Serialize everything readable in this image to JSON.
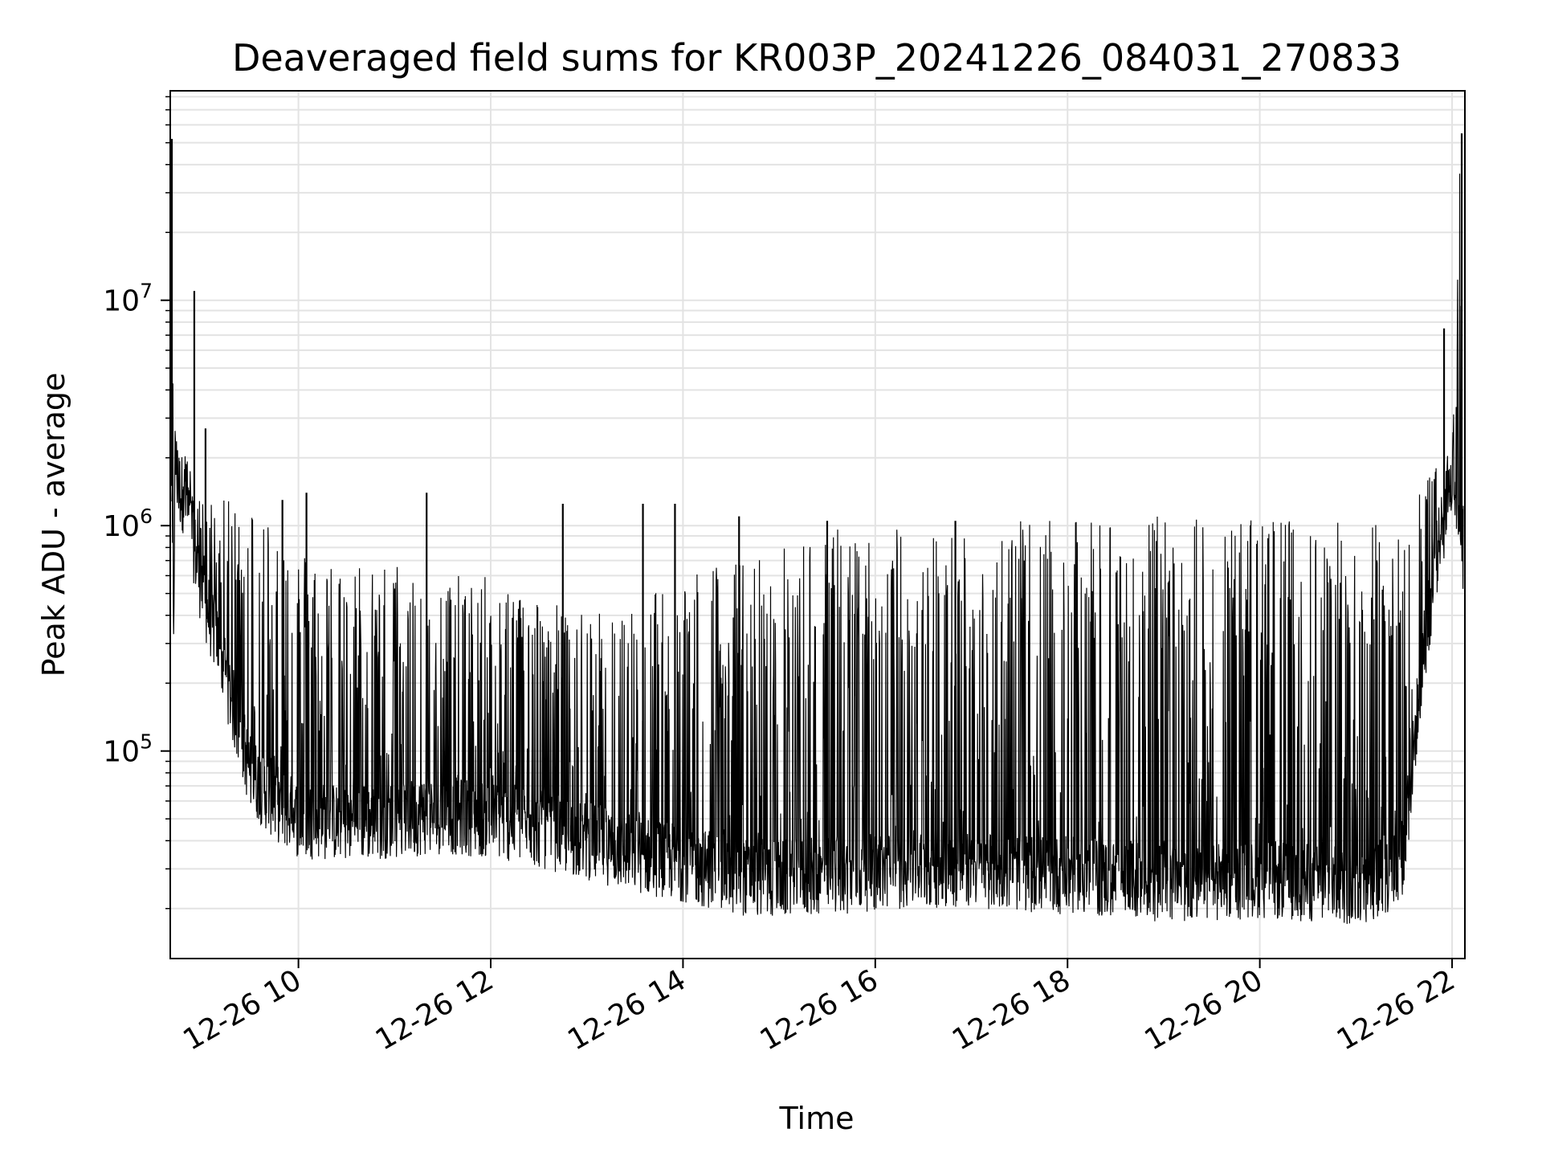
{
  "chart_data": {
    "type": "line",
    "title": "Deaveraged field sums for KR003P_20241226_084031_270833",
    "xlabel": "Time",
    "ylabel": "Peak ADU - average",
    "yscale": "log",
    "ylim": [
      12000,
      85000000
    ],
    "xlim": [
      "2024-12-26 08:40",
      "2024-12-26 22:08"
    ],
    "grid": true,
    "series_color": "#000000",
    "x_ticks": [
      {
        "value": "2024-12-26 10:00",
        "label": "12-26 10"
      },
      {
        "value": "2024-12-26 12:00",
        "label": "12-26 12"
      },
      {
        "value": "2024-12-26 14:00",
        "label": "12-26 14"
      },
      {
        "value": "2024-12-26 16:00",
        "label": "12-26 16"
      },
      {
        "value": "2024-12-26 18:00",
        "label": "12-26 18"
      },
      {
        "value": "2024-12-26 20:00",
        "label": "12-26 20"
      },
      {
        "value": "2024-12-26 22:00",
        "label": "12-26 22"
      }
    ],
    "y_ticks": [
      {
        "value": 100000,
        "base": "10",
        "exp": "5"
      },
      {
        "value": 1000000,
        "base": "10",
        "exp": "6"
      },
      {
        "value": 10000000,
        "base": "10",
        "exp": "7"
      }
    ],
    "series": [
      {
        "x": [
          "2024-12-26 08:41",
          "2024-12-26 08:42",
          "2024-12-26 08:43",
          "2024-12-26 08:45",
          "2024-12-26 08:50",
          "2024-12-26 08:55",
          "2024-12-26 09:00",
          "2024-12-26 09:10",
          "2024-12-26 09:20",
          "2024-12-26 09:30",
          "2024-12-26 09:45",
          "2024-12-26 10:00",
          "2024-12-26 10:30",
          "2024-12-26 11:00",
          "2024-12-26 11:30",
          "2024-12-26 12:00",
          "2024-12-26 12:30",
          "2024-12-26 13:00",
          "2024-12-26 13:30",
          "2024-12-26 14:00",
          "2024-12-26 14:30",
          "2024-12-26 15:00",
          "2024-12-26 15:30",
          "2024-12-26 16:00",
          "2024-12-26 16:30",
          "2024-12-26 17:00",
          "2024-12-26 17:30",
          "2024-12-26 18:00",
          "2024-12-26 18:30",
          "2024-12-26 19:00",
          "2024-12-26 19:30",
          "2024-12-26 20:00",
          "2024-12-26 20:30",
          "2024-12-26 21:00",
          "2024-12-26 21:20",
          "2024-12-26 21:30",
          "2024-12-26 21:40",
          "2024-12-26 21:50",
          "2024-12-26 22:00",
          "2024-12-26 22:05",
          "2024-12-26 22:07"
        ],
        "baseline": [
          1500000,
          300000,
          2000000,
          1500000,
          1300000,
          800000,
          500000,
          300000,
          150000,
          80000,
          60000,
          50000,
          48000,
          50000,
          52000,
          50000,
          45000,
          40000,
          35000,
          32000,
          28000,
          27000,
          28000,
          29000,
          30000,
          30000,
          29000,
          28000,
          27000,
          26000,
          26000,
          27000,
          26000,
          25000,
          28000,
          35000,
          200000,
          700000,
          1600000,
          1200000,
          700000
        ],
        "envelope": [
          50000000,
          1500000,
          2500000,
          2400000,
          2200000,
          1400000,
          1300000,
          1300000,
          1300000,
          1300000,
          1200000,
          800000,
          700000,
          700000,
          600000,
          600000,
          500000,
          400000,
          450000,
          700000,
          700000,
          800000,
          1000000,
          1000000,
          1000000,
          1000000,
          1050000,
          1050000,
          1100000,
          1100000,
          1100000,
          1100000,
          1050000,
          1100000,
          1100000,
          1200000,
          1500000,
          2200000,
          2000000,
          55000000,
          1700000
        ],
        "spikes": [
          {
            "x": "2024-12-26 08:41",
            "y": 52000000
          },
          {
            "x": "2024-12-26 08:55",
            "y": 11000000
          },
          {
            "x": "2024-12-26 09:02",
            "y": 2700000
          },
          {
            "x": "2024-12-26 09:50",
            "y": 1300000
          },
          {
            "x": "2024-12-26 10:05",
            "y": 1400000
          },
          {
            "x": "2024-12-26 11:20",
            "y": 1400000
          },
          {
            "x": "2024-12-26 12:45",
            "y": 1250000
          },
          {
            "x": "2024-12-26 13:35",
            "y": 1250000
          },
          {
            "x": "2024-12-26 13:55",
            "y": 1250000
          },
          {
            "x": "2024-12-26 14:35",
            "y": 1100000
          },
          {
            "x": "2024-12-26 15:30",
            "y": 1050000
          },
          {
            "x": "2024-12-26 16:50",
            "y": 1050000
          },
          {
            "x": "2024-12-26 21:55",
            "y": 7500000
          },
          {
            "x": "2024-12-26 22:06",
            "y": 55000000
          }
        ]
      }
    ]
  }
}
